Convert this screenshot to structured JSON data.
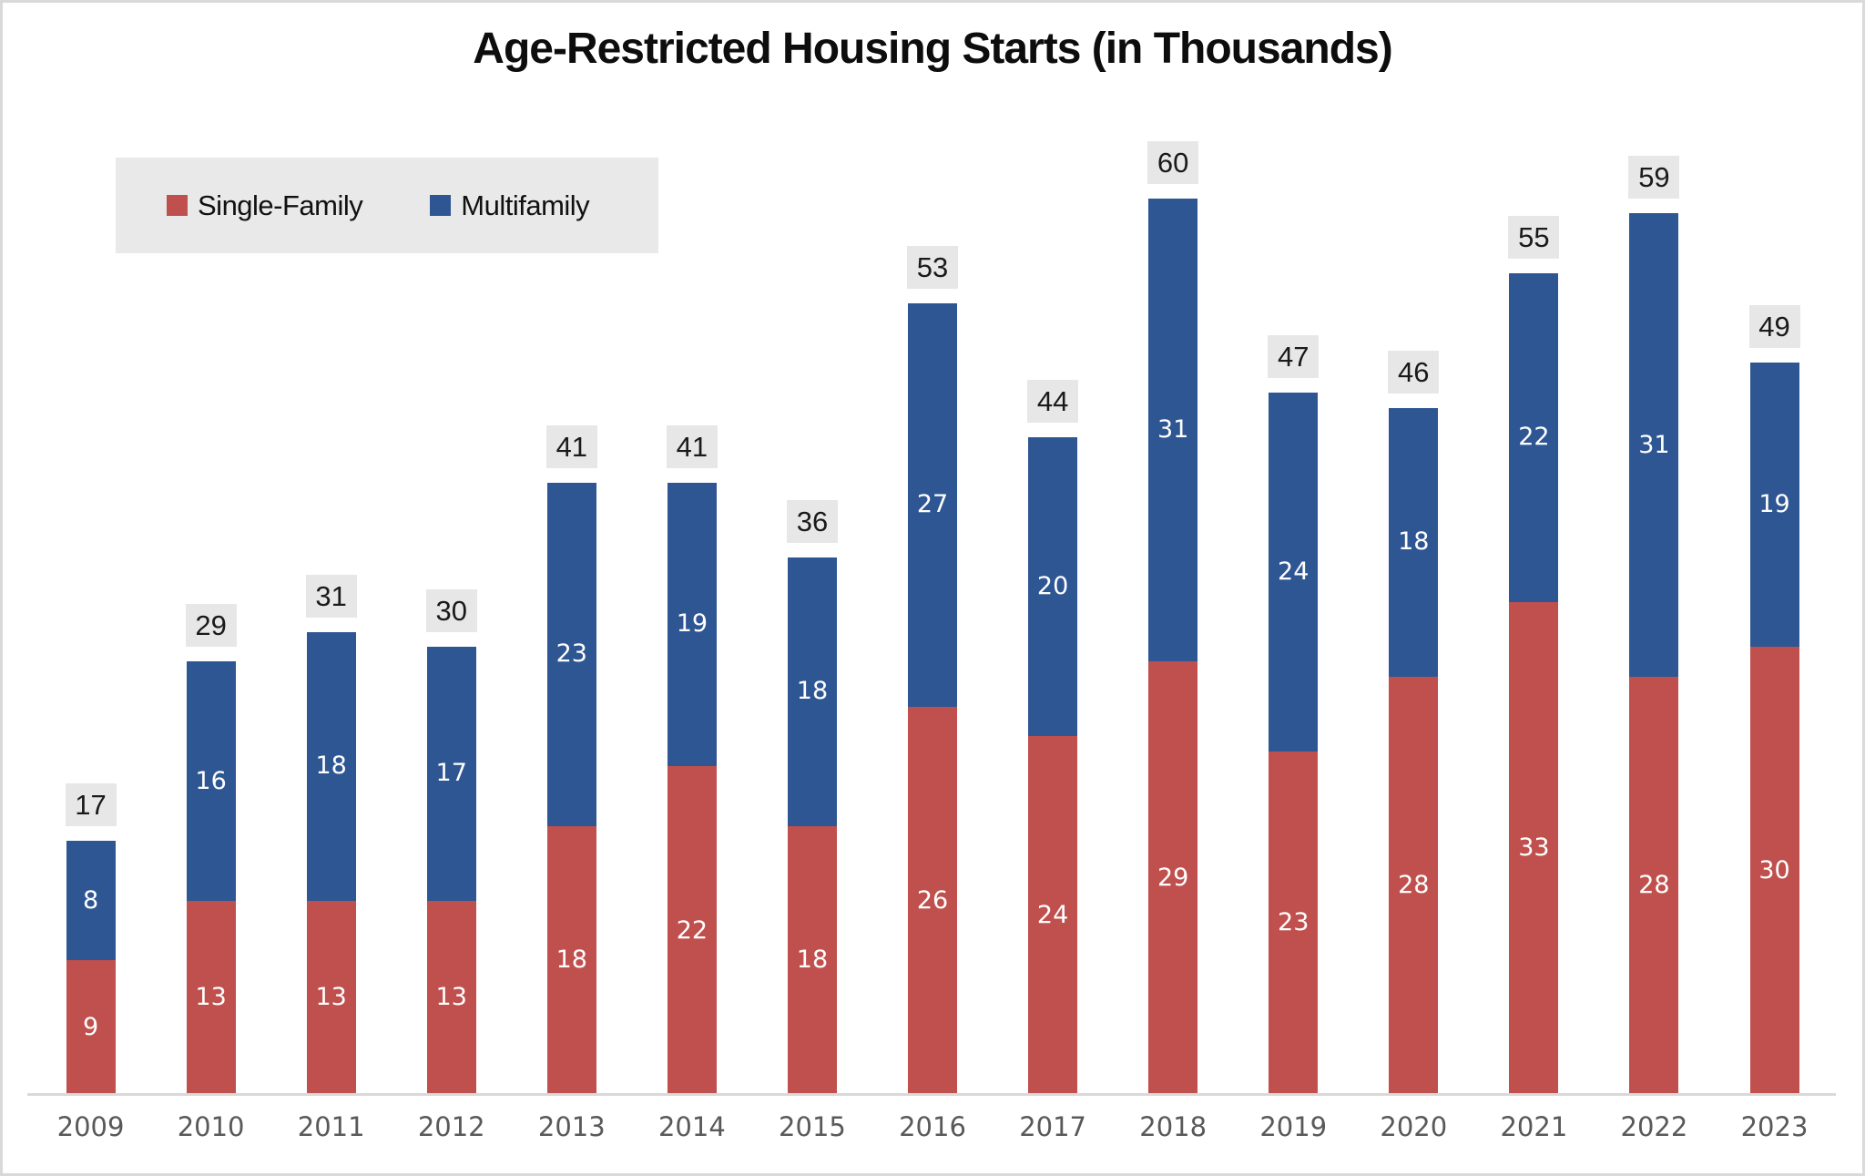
{
  "chart_data": {
    "type": "bar",
    "stacked": true,
    "title": "Age-Restricted Housing Starts (in Thousands)",
    "categories": [
      "2009",
      "2010",
      "2011",
      "2012",
      "2013",
      "2014",
      "2015",
      "2016",
      "2017",
      "2018",
      "2019",
      "2020",
      "2021",
      "2022",
      "2023"
    ],
    "series": [
      {
        "name": "Single-Family",
        "color": "#C0504D",
        "values": [
          9,
          13,
          13,
          13,
          18,
          22,
          18,
          26,
          24,
          29,
          23,
          28,
          33,
          28,
          30
        ]
      },
      {
        "name": "Multifamily",
        "color": "#2E5693",
        "values": [
          8,
          16,
          18,
          17,
          23,
          19,
          18,
          27,
          20,
          31,
          24,
          18,
          22,
          31,
          19
        ]
      }
    ],
    "totals": [
      17,
      29,
      31,
      30,
      41,
      41,
      36,
      53,
      44,
      60,
      47,
      46,
      55,
      59,
      49
    ],
    "ylim": [
      0,
      62
    ],
    "grid": false,
    "y_axis_visible": false,
    "legend_position": "top-left",
    "colors": {
      "total_label_bg": "#E7E7E7",
      "total_label_text": "#1A1A1A",
      "segment_label_text": "#FFFFFF",
      "legend_bg": "#E9E9E9",
      "axis_line": "#D9D9D9",
      "year_label": "#595959",
      "frame_border": "#D9D9D9",
      "background": "#FFFFFF"
    }
  }
}
